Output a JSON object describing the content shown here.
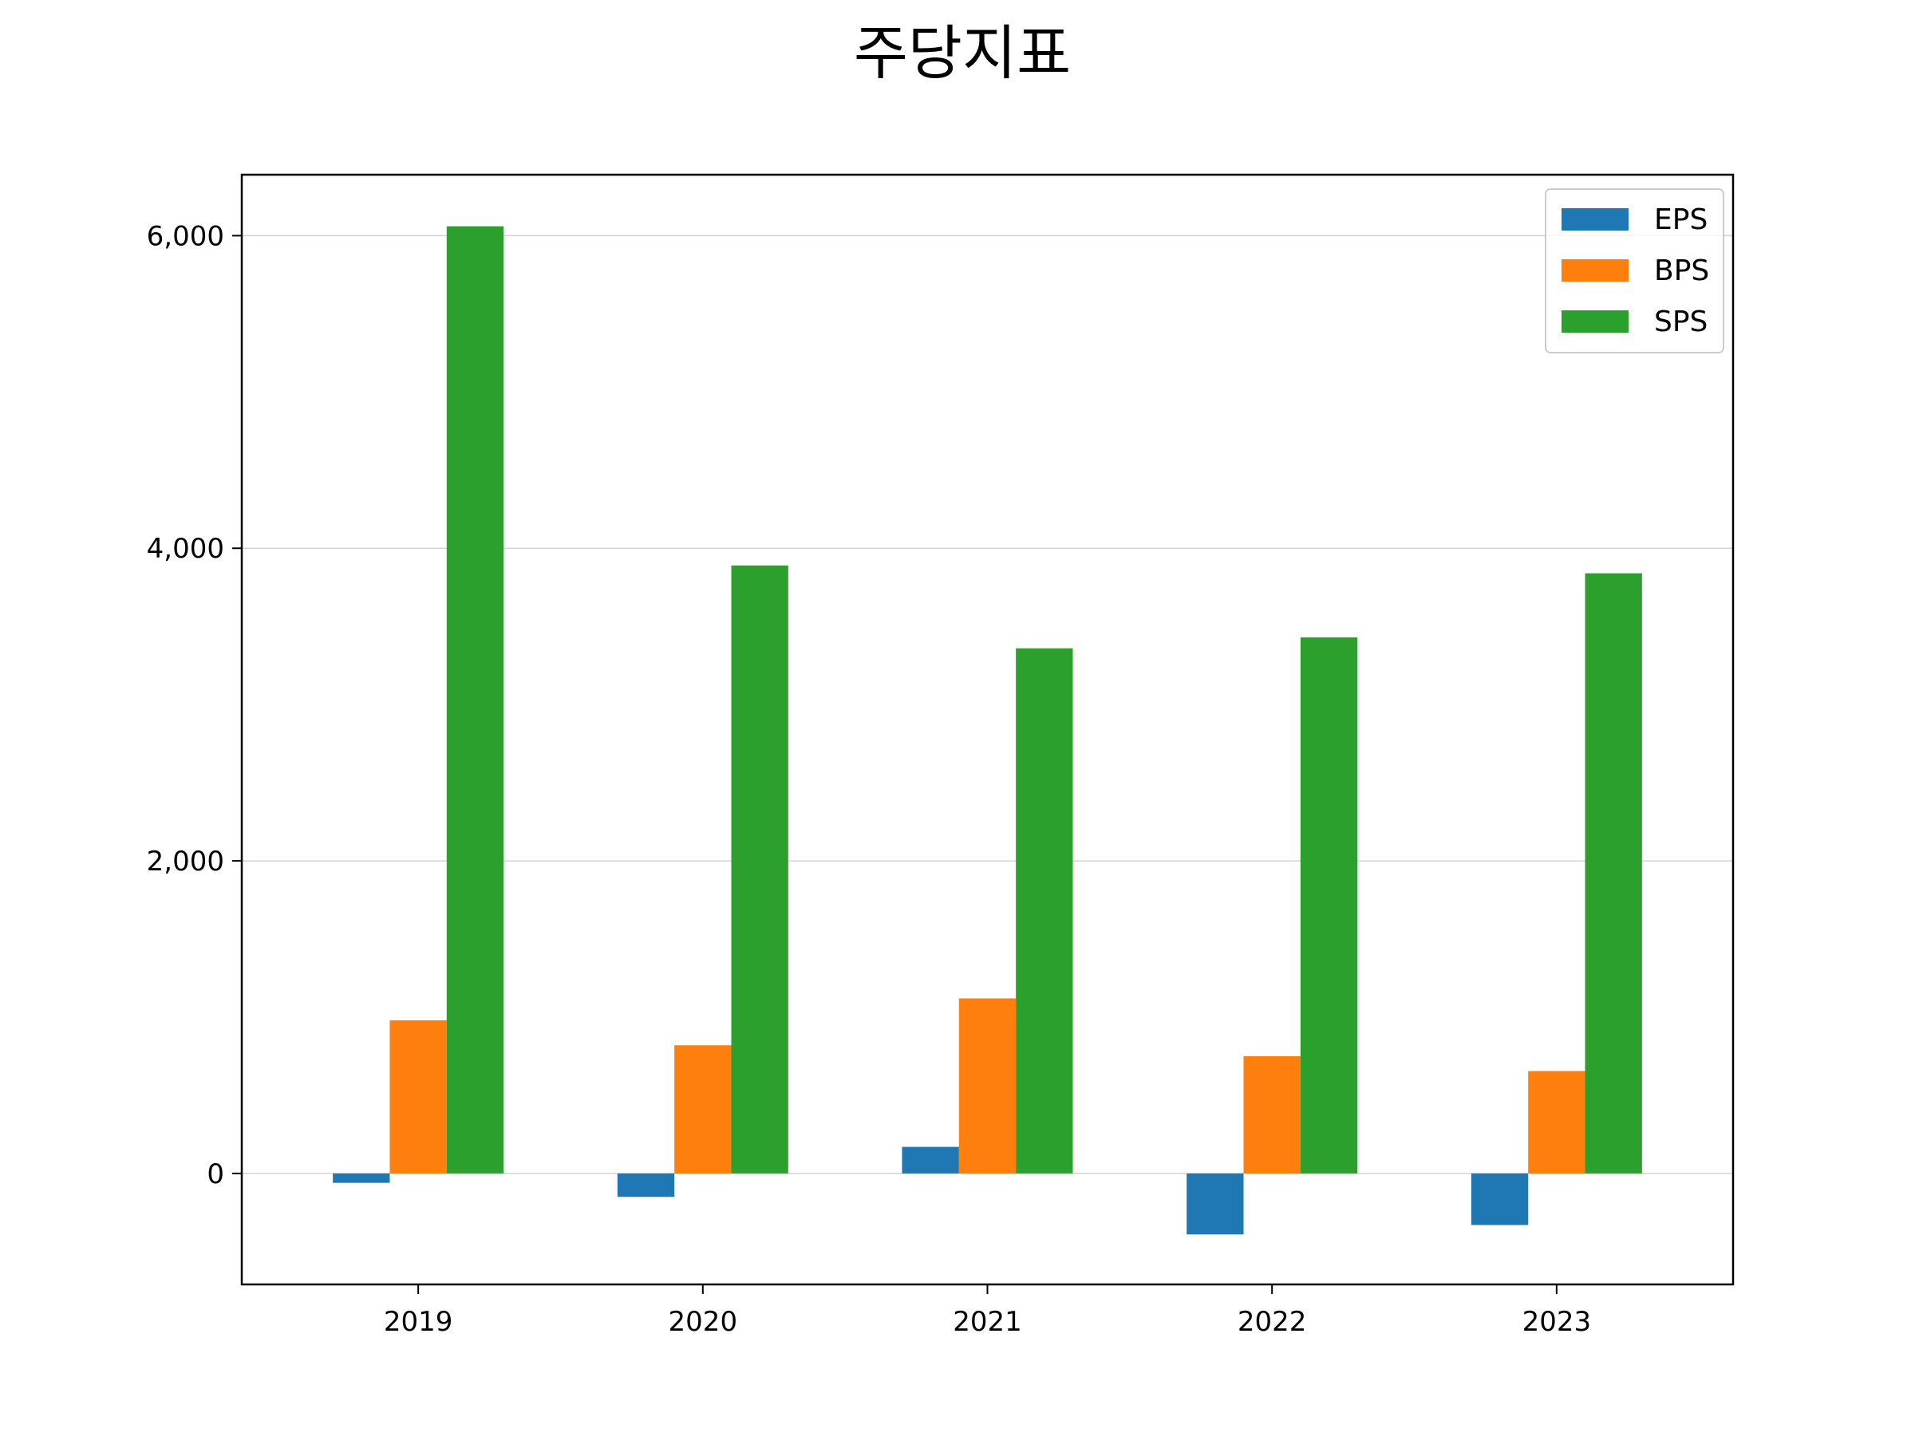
{
  "chart_data": {
    "type": "bar",
    "title": "주당지표",
    "xlabel": "",
    "ylabel": "",
    "categories": [
      "2019",
      "2020",
      "2021",
      "2022",
      "2023"
    ],
    "series": [
      {
        "name": "EPS",
        "color": "#1f77b4",
        "values": [
          -60,
          -150,
          170,
          -390,
          -330
        ]
      },
      {
        "name": "BPS",
        "color": "#ff7f0e",
        "values": [
          980,
          820,
          1120,
          750,
          655
        ]
      },
      {
        "name": "SPS",
        "color": "#2ca02c",
        "values": [
          6060,
          3890,
          3360,
          3430,
          3840
        ]
      }
    ],
    "ylim": [
      -710,
      6390
    ],
    "yticks": [
      0,
      2000,
      4000,
      6000
    ],
    "ytick_labels": [
      "0",
      "2,000",
      "4,000",
      "6,000"
    ],
    "grid": "horizontal",
    "legend": "top-right"
  }
}
